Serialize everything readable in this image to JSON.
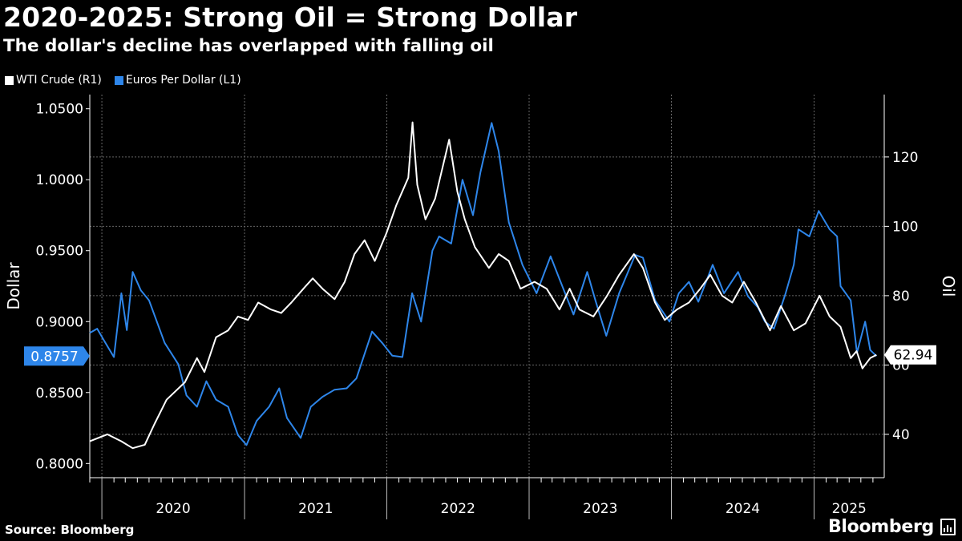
{
  "header": {
    "title": "2020-2025: Strong Oil = Strong Dollar",
    "subtitle": "The dollar's decline has overlapped with falling oil"
  },
  "footer": {
    "source": "Source: Bloomberg",
    "brand": "Bloomberg"
  },
  "colors": {
    "background": "#000000",
    "oil": "#ffffff",
    "eur": "#2e86ea",
    "grid": "#666666"
  },
  "chart_data": {
    "type": "line",
    "xlim": [
      "2019-12-01",
      "2025-06-30"
    ],
    "x_ticks": [
      "2020",
      "2021",
      "2022",
      "2023",
      "2024",
      "2025"
    ],
    "legend_position": "top-left",
    "grid": true,
    "left_axis": {
      "label": "Dollar",
      "ylim": [
        0.79,
        1.06
      ],
      "ticks": [
        "0.8000",
        "0.8500",
        "0.9000",
        "0.9500",
        "1.0000",
        "1.0500"
      ]
    },
    "right_axis": {
      "label": "Oil",
      "ylim": [
        27.5,
        138
      ],
      "ticks": [
        "40",
        "60",
        "80",
        "100",
        "120"
      ]
    },
    "series": [
      {
        "name": "WTI Crude (R1)",
        "axis": "right",
        "last_value": "62.94",
        "points": [
          [
            "2019-12-01",
            38
          ],
          [
            "2020-01-15",
            40
          ],
          [
            "2020-02-20",
            38
          ],
          [
            "2020-03-20",
            36
          ],
          [
            "2020-04-20",
            37
          ],
          [
            "2020-05-15",
            43
          ],
          [
            "2020-06-15",
            50
          ],
          [
            "2020-08-01",
            55
          ],
          [
            "2020-09-01",
            62
          ],
          [
            "2020-09-20",
            58
          ],
          [
            "2020-10-20",
            68
          ],
          [
            "2020-11-20",
            70
          ],
          [
            "2020-12-15",
            74
          ],
          [
            "2021-01-10",
            73
          ],
          [
            "2021-02-05",
            78
          ],
          [
            "2021-03-10",
            76
          ],
          [
            "2021-04-05",
            75
          ],
          [
            "2021-05-01",
            78
          ],
          [
            "2021-06-01",
            82
          ],
          [
            "2021-06-25",
            85
          ],
          [
            "2021-07-20",
            82
          ],
          [
            "2021-08-20",
            79
          ],
          [
            "2021-09-15",
            84
          ],
          [
            "2021-10-10",
            92
          ],
          [
            "2021-11-05",
            96
          ],
          [
            "2021-12-01",
            90
          ],
          [
            "2021-12-31",
            98
          ],
          [
            "2022-01-25",
            106
          ],
          [
            "2022-02-25",
            114
          ],
          [
            "2022-03-08",
            130
          ],
          [
            "2022-03-20",
            112
          ],
          [
            "2022-04-10",
            102
          ],
          [
            "2022-05-05",
            108
          ],
          [
            "2022-06-10",
            125
          ],
          [
            "2022-07-01",
            110
          ],
          [
            "2022-07-20",
            102
          ],
          [
            "2022-08-15",
            94
          ],
          [
            "2022-09-20",
            88
          ],
          [
            "2022-10-15",
            92
          ],
          [
            "2022-11-10",
            90
          ],
          [
            "2022-12-10",
            82
          ],
          [
            "2023-01-15",
            84
          ],
          [
            "2023-02-15",
            82
          ],
          [
            "2023-03-20",
            76
          ],
          [
            "2023-04-15",
            82
          ],
          [
            "2023-05-10",
            76
          ],
          [
            "2023-06-15",
            74
          ],
          [
            "2023-07-20",
            80
          ],
          [
            "2023-08-20",
            86
          ],
          [
            "2023-09-27",
            92
          ],
          [
            "2023-10-20",
            88
          ],
          [
            "2023-11-20",
            78
          ],
          [
            "2023-12-15",
            73
          ],
          [
            "2024-01-15",
            76
          ],
          [
            "2024-02-15",
            78
          ],
          [
            "2024-03-15",
            82
          ],
          [
            "2024-04-10",
            86
          ],
          [
            "2024-05-10",
            80
          ],
          [
            "2024-06-05",
            78
          ],
          [
            "2024-07-05",
            84
          ],
          [
            "2024-08-05",
            78
          ],
          [
            "2024-09-10",
            70
          ],
          [
            "2024-10-08",
            77
          ],
          [
            "2024-11-10",
            70
          ],
          [
            "2024-12-10",
            72
          ],
          [
            "2025-01-15",
            80
          ],
          [
            "2025-02-10",
            74
          ],
          [
            "2025-03-10",
            71
          ],
          [
            "2025-04-05",
            62
          ],
          [
            "2025-04-20",
            64
          ],
          [
            "2025-05-05",
            59
          ],
          [
            "2025-05-25",
            62
          ],
          [
            "2025-06-10",
            62.94
          ]
        ]
      },
      {
        "name": "Euros Per Dollar (L1)",
        "axis": "left",
        "last_value": "0.8757",
        "points": [
          [
            "2019-12-01",
            0.892
          ],
          [
            "2019-12-20",
            0.895
          ],
          [
            "2020-01-10",
            0.885
          ],
          [
            "2020-02-01",
            0.875
          ],
          [
            "2020-02-20",
            0.92
          ],
          [
            "2020-03-05",
            0.894
          ],
          [
            "2020-03-20",
            0.935
          ],
          [
            "2020-04-10",
            0.922
          ],
          [
            "2020-05-01",
            0.915
          ],
          [
            "2020-06-10",
            0.885
          ],
          [
            "2020-07-15",
            0.87
          ],
          [
            "2020-08-05",
            0.848
          ],
          [
            "2020-09-01",
            0.84
          ],
          [
            "2020-09-25",
            0.858
          ],
          [
            "2020-10-20",
            0.845
          ],
          [
            "2020-11-20",
            0.84
          ],
          [
            "2020-12-15",
            0.82
          ],
          [
            "2021-01-06",
            0.813
          ],
          [
            "2021-02-01",
            0.83
          ],
          [
            "2021-03-05",
            0.84
          ],
          [
            "2021-03-31",
            0.853
          ],
          [
            "2021-04-20",
            0.832
          ],
          [
            "2021-05-25",
            0.818
          ],
          [
            "2021-06-20",
            0.84
          ],
          [
            "2021-07-20",
            0.847
          ],
          [
            "2021-08-20",
            0.852
          ],
          [
            "2021-09-20",
            0.853
          ],
          [
            "2021-10-15",
            0.86
          ],
          [
            "2021-11-24",
            0.893
          ],
          [
            "2021-12-20",
            0.885
          ],
          [
            "2022-01-15",
            0.876
          ],
          [
            "2022-02-10",
            0.875
          ],
          [
            "2022-03-07",
            0.92
          ],
          [
            "2022-03-30",
            0.9
          ],
          [
            "2022-04-28",
            0.95
          ],
          [
            "2022-05-15",
            0.96
          ],
          [
            "2022-06-15",
            0.955
          ],
          [
            "2022-07-14",
            1.0
          ],
          [
            "2022-08-10",
            0.975
          ],
          [
            "2022-08-29",
            1.005
          ],
          [
            "2022-09-27",
            1.04
          ],
          [
            "2022-10-15",
            1.02
          ],
          [
            "2022-11-10",
            0.97
          ],
          [
            "2022-12-15",
            0.94
          ],
          [
            "2023-01-20",
            0.92
          ],
          [
            "2023-02-25",
            0.946
          ],
          [
            "2023-03-20",
            0.93
          ],
          [
            "2023-04-25",
            0.905
          ],
          [
            "2023-05-30",
            0.935
          ],
          [
            "2023-06-20",
            0.915
          ],
          [
            "2023-07-18",
            0.89
          ],
          [
            "2023-08-20",
            0.92
          ],
          [
            "2023-09-30",
            0.947
          ],
          [
            "2023-10-20",
            0.945
          ],
          [
            "2023-11-20",
            0.915
          ],
          [
            "2023-12-27",
            0.9
          ],
          [
            "2024-01-20",
            0.92
          ],
          [
            "2024-02-15",
            0.928
          ],
          [
            "2024-03-10",
            0.914
          ],
          [
            "2024-04-16",
            0.94
          ],
          [
            "2024-05-15",
            0.92
          ],
          [
            "2024-06-20",
            0.935
          ],
          [
            "2024-07-15",
            0.918
          ],
          [
            "2024-08-10",
            0.91
          ],
          [
            "2024-08-28",
            0.9
          ],
          [
            "2024-09-20",
            0.895
          ],
          [
            "2024-10-20",
            0.92
          ],
          [
            "2024-11-10",
            0.94
          ],
          [
            "2024-11-22",
            0.965
          ],
          [
            "2024-12-20",
            0.96
          ],
          [
            "2025-01-13",
            0.978
          ],
          [
            "2025-02-10",
            0.965
          ],
          [
            "2025-03-01",
            0.96
          ],
          [
            "2025-03-10",
            0.925
          ],
          [
            "2025-04-05",
            0.915
          ],
          [
            "2025-04-21",
            0.878
          ],
          [
            "2025-05-12",
            0.9
          ],
          [
            "2025-05-25",
            0.88
          ],
          [
            "2025-06-10",
            0.8757
          ]
        ]
      }
    ]
  }
}
